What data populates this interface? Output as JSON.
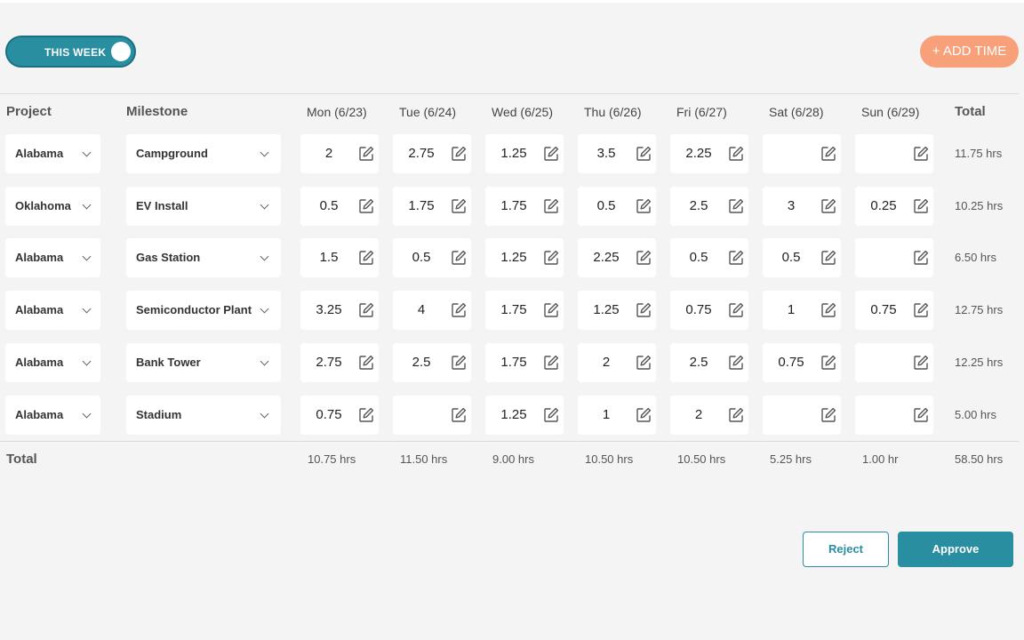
{
  "toggle": {
    "label": "THIS WEEK"
  },
  "add_time_label": "+ ADD TIME",
  "headers": {
    "project": "Project",
    "milestone": "Milestone",
    "days": [
      "Mon (6/23)",
      "Tue (6/24)",
      "Wed (6/25)",
      "Thu (6/26)",
      "Fri (6/27)",
      "Sat (6/28)",
      "Sun (6/29)"
    ],
    "total": "Total"
  },
  "rows": [
    {
      "project": "Alabama",
      "milestone": "Campground",
      "hours": [
        "2",
        "2.75",
        "1.25",
        "3.5",
        "2.25",
        "",
        ""
      ],
      "total": "11.75 hrs"
    },
    {
      "project": "Oklahoma",
      "milestone": "EV Install",
      "hours": [
        "0.5",
        "1.75",
        "1.75",
        "0.5",
        "2.5",
        "3",
        "0.25"
      ],
      "total": "10.25 hrs"
    },
    {
      "project": "Alabama",
      "milestone": "Gas Station",
      "hours": [
        "1.5",
        "0.5",
        "1.25",
        "2.25",
        "0.5",
        "0.5",
        ""
      ],
      "total": "6.50 hrs"
    },
    {
      "project": "Alabama",
      "milestone": "Semiconductor Plant",
      "hours": [
        "3.25",
        "4",
        "1.75",
        "1.25",
        "0.75",
        "1",
        "0.75"
      ],
      "total": "12.75 hrs"
    },
    {
      "project": "Alabama",
      "milestone": "Bank Tower",
      "hours": [
        "2.75",
        "2.5",
        "1.75",
        "2",
        "2.5",
        "0.75",
        ""
      ],
      "total": "12.25 hrs"
    },
    {
      "project": "Alabama",
      "milestone": "Stadium",
      "hours": [
        "0.75",
        "",
        "1.25",
        "1",
        "2",
        "",
        ""
      ],
      "total": "5.00 hrs"
    }
  ],
  "footer": {
    "label": "Total",
    "day_totals": [
      "10.75 hrs",
      "11.50 hrs",
      "9.00 hrs",
      "10.50 hrs",
      "10.50 hrs",
      "5.25 hrs",
      "1.00 hr"
    ],
    "grand_total": "58.50 hrs"
  },
  "buttons": {
    "reject": "Reject",
    "approve": "Approve"
  },
  "icons": {
    "edit": "edit-pencil-icon",
    "chevron": "chevron-down-icon"
  },
  "colors": {
    "primary": "#2a8ea1",
    "accent": "#f8a07a",
    "background": "#f4f4f4"
  }
}
